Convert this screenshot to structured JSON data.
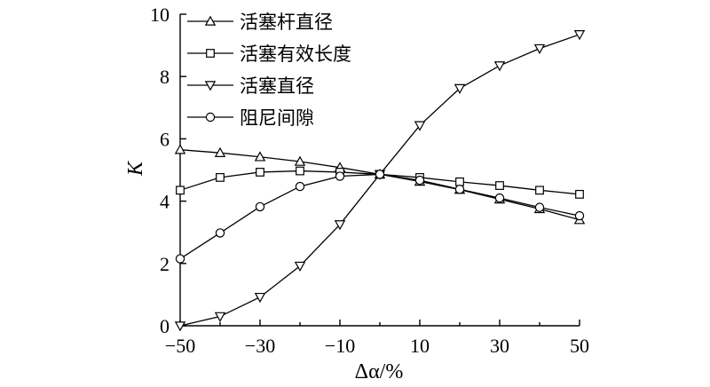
{
  "chart_data": {
    "type": "line",
    "xlabel": "Δα/%",
    "ylabel": "K",
    "xlim": [
      -50,
      50
    ],
    "ylim": [
      0,
      10
    ],
    "xticks": [
      -50,
      -30,
      -10,
      10,
      30,
      50
    ],
    "xtick_labels": [
      "−50",
      "−30",
      "−10",
      "10",
      "30",
      "50"
    ],
    "yticks": [
      0,
      2,
      4,
      6,
      8,
      10
    ],
    "ytick_labels": [
      "0",
      "2",
      "4",
      "6",
      "8",
      "10"
    ],
    "legend_position": "top-left",
    "x": [
      -50,
      -40,
      -30,
      -20,
      -10,
      0,
      10,
      20,
      30,
      40,
      50
    ],
    "series": [
      {
        "name": "活塞杆直径",
        "marker": "triangle-up",
        "values": [
          5.65,
          5.55,
          5.42,
          5.27,
          5.08,
          4.86,
          4.63,
          4.37,
          4.06,
          3.75,
          3.4
        ]
      },
      {
        "name": "活塞有效长度",
        "marker": "square",
        "values": [
          4.35,
          4.76,
          4.93,
          4.97,
          4.93,
          4.86,
          4.76,
          4.62,
          4.5,
          4.35,
          4.22
        ]
      },
      {
        "name": "活塞直径",
        "marker": "triangle-down",
        "values": [
          0.0,
          0.3,
          0.92,
          1.92,
          3.25,
          4.86,
          6.43,
          7.62,
          8.35,
          8.9,
          9.35
        ]
      },
      {
        "name": "阻尼间隙",
        "marker": "circle",
        "values": [
          2.15,
          2.98,
          3.82,
          4.47,
          4.8,
          4.86,
          4.67,
          4.38,
          4.1,
          3.8,
          3.53
        ]
      }
    ]
  }
}
